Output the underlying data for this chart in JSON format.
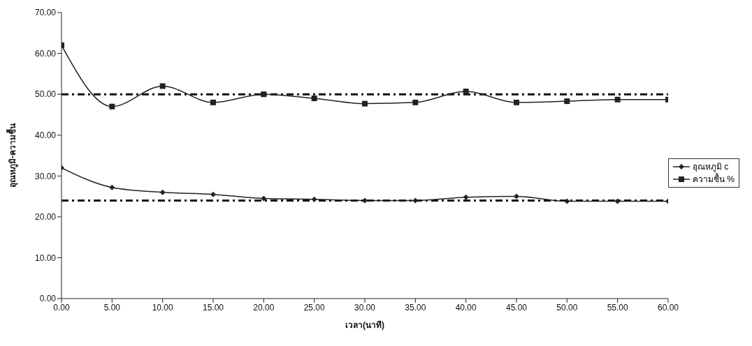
{
  "chart_data": {
    "type": "line",
    "xlabel": "เวลา(นาที)",
    "ylabel": "อุณหภูมิ-ความชื้น",
    "x": [
      0,
      5,
      10,
      15,
      20,
      25,
      30,
      35,
      40,
      45,
      50,
      55,
      60
    ],
    "series": [
      {
        "name": "อุณหภูมิ c",
        "color": "#222222",
        "marker": "diamond",
        "values": [
          32,
          27.2,
          26,
          25.5,
          24.5,
          24.3,
          24,
          24,
          24.8,
          25,
          23.8,
          23.8,
          23.8
        ]
      },
      {
        "name": "ความชื้น %",
        "color": "#222222",
        "marker": "square",
        "values": [
          62,
          47,
          52,
          48,
          50,
          49,
          47.7,
          48,
          50.7,
          48,
          48.3,
          48.7,
          48.7
        ]
      }
    ],
    "xlim": [
      0,
      60
    ],
    "xticks": [
      {
        "value": 0,
        "label": "0.00"
      },
      {
        "value": 5,
        "label": "5.00"
      },
      {
        "value": 10,
        "label": "10.00"
      },
      {
        "value": 15,
        "label": "15.00"
      },
      {
        "value": 20,
        "label": "20.00"
      },
      {
        "value": 25,
        "label": "25.00"
      },
      {
        "value": 30,
        "label": "30.00"
      },
      {
        "value": 35,
        "label": "35.00"
      },
      {
        "value": 40,
        "label": "40.00"
      },
      {
        "value": 45,
        "label": "45.00"
      },
      {
        "value": 50,
        "label": "50.00"
      },
      {
        "value": 55,
        "label": "55.00"
      },
      {
        "value": 60,
        "label": "60.00"
      }
    ],
    "ylim": [
      0,
      70
    ],
    "yticks": [
      {
        "value": 0,
        "label": "0.00"
      },
      {
        "value": 10,
        "label": "10.00"
      },
      {
        "value": 20,
        "label": "20.00"
      },
      {
        "value": 30,
        "label": "30.00"
      },
      {
        "value": 40,
        "label": "40.00"
      },
      {
        "value": 50,
        "label": "50.00"
      },
      {
        "value": 60,
        "label": "60.00"
      },
      {
        "value": 70,
        "label": "70.00"
      }
    ],
    "ref_lines": [
      {
        "axis": "y",
        "value": 50,
        "color": "#111111",
        "line_style": "dashdot"
      },
      {
        "axis": "y",
        "value": 24,
        "color": "#111111",
        "line_style": "dashdot"
      }
    ],
    "legend": "right",
    "line_style": "solid"
  }
}
